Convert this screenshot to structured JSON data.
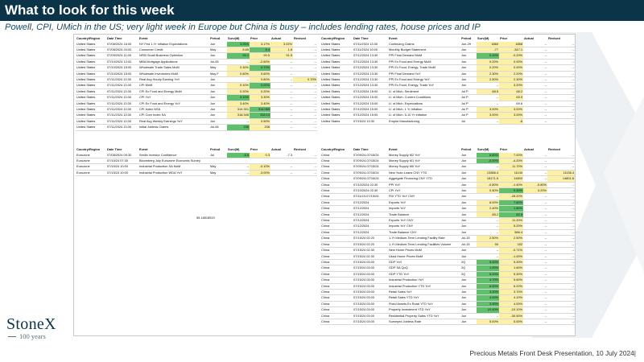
{
  "slide": {
    "title": "What to look for this week",
    "subtitle": "Powell, CPI, UMich in the US; very light week in Europe but China is busy – includes lending rates, house prices and IP",
    "footer": "Precious Metals Front Desk Presentation, 10 July 2024|",
    "logo_name": "StoneX",
    "logo_sub": "100 years",
    "orphan_value": "55.18518519",
    "colors": {
      "title_band": "#0b3448",
      "highlight_green": "#5fbf6a",
      "highlight_yellow": "#fbf0a6",
      "highlight_light_green": "#c7e5b3"
    }
  },
  "headers": {
    "us_left": [
      "Country/Region",
      "Date Time",
      "Event",
      "Period",
      "Surv(M)",
      "Prior",
      "Actual",
      "Revised"
    ],
    "us_right": [
      "Country/Region",
      "Date Time",
      "Event",
      "Period",
      "Surv(M)",
      "Prior",
      "Actual",
      "Revised"
    ],
    "eu": [
      "Country/Region",
      "Date Time",
      "Event",
      "Period",
      "Surv(M)",
      "Prior",
      "Actual",
      "Revised"
    ],
    "cn": [
      "Country/Region",
      "Date Time",
      "Event",
      "Period",
      "Surv(M)",
      "Prior",
      "Actual",
      "Revised"
    ]
  },
  "us_left": [
    {
      "c": "United States",
      "d": "07/08/2024 16:00",
      "e": "NY Fed 1-Yr Inflation Expectations",
      "p": "Jun",
      "s": "3.05%",
      "pr": "3.17%",
      "a": "3.02%",
      "r": "--",
      "hs": "g",
      "hpr": "y",
      "ha": "y"
    },
    {
      "c": "United States",
      "d": "07/08/2024 20:00",
      "e": "Consumer Credit",
      "p": "May",
      "s": "8.65",
      "pr": "6.4",
      "a": "1.8",
      "r": "--",
      "hs": "y",
      "hpr": "g",
      "ha": "y"
    },
    {
      "c": "United States",
      "d": "07/09/2024 11:00",
      "e": "NFIB Small Business Optimism",
      "p": "Jun",
      "s": "90.1",
      "pr": "90.5",
      "a": "91.5",
      "r": "--",
      "hs": "g",
      "hpr": "y",
      "ha": "y"
    },
    {
      "c": "United States",
      "d": "07/10/2024 12:00",
      "e": "MBA Mortgage Applications",
      "p": "Jul-05",
      "s": "--",
      "pr": "-2.60%",
      "a": "--",
      "r": "--",
      "hs": "",
      "hpr": "y",
      "ha": ""
    },
    {
      "c": "United States",
      "d": "07/10/2024 15:00",
      "e": "Wholesale Trade Sales MoM",
      "p": "May",
      "s": "0.30%",
      "pr": "0.70%",
      "a": "--",
      "r": "--",
      "hs": "y",
      "hpr": "g",
      "ha": ""
    },
    {
      "c": "United States",
      "d": "07/10/2024 15:00",
      "e": "Wholesale Inventories MoM",
      "p": "May F",
      "s": "0.60%",
      "pr": "0.60%",
      "a": "--",
      "r": "--",
      "hs": "y",
      "hpr": "y",
      "ha": ""
    },
    {
      "c": "United States",
      "d": "07/11/2024 13:30",
      "e": "Real Avg Hourly Earning YoY",
      "p": "Jun",
      "s": "--",
      "pr": "0.80%",
      "a": "--",
      "r": "0.70%",
      "hs": "",
      "hpr": "y",
      "ha": "",
      "hr": "y"
    },
    {
      "c": "United States",
      "d": "07/11/2024 13:30",
      "e": "CPI MoM",
      "p": "Jun",
      "s": "0.10%",
      "pr": "0.00%",
      "a": "--",
      "r": "--",
      "hs": "y",
      "hpr": "g",
      "ha": ""
    },
    {
      "c": "United States",
      "d": "07/11/2024 13:30",
      "e": "CPI Ex Food and Energy MoM",
      "p": "Jun",
      "s": "0.20%",
      "pr": "0.20%",
      "a": "--",
      "r": "--",
      "hs": "y",
      "hpr": "y",
      "ha": ""
    },
    {
      "c": "United States",
      "d": "07/11/2024 13:30",
      "e": "CPI YoY",
      "p": "Jun",
      "s": "3.10%",
      "pr": "3.30%",
      "a": "--",
      "r": "--",
      "hs": "g",
      "hpr": "y",
      "ha": ""
    },
    {
      "c": "United States",
      "d": "07/11/2024 13:30",
      "e": "CPI Ex Food and Energy YoY",
      "p": "Jun",
      "s": "3.40%",
      "pr": "3.40%",
      "a": "--",
      "r": "--",
      "hs": "y",
      "hpr": "y",
      "ha": ""
    },
    {
      "c": "United States",
      "d": "07/11/2024 13:30",
      "e": "CPI Index NSA",
      "p": "Jun",
      "s": "314.301",
      "pr": "314.069",
      "a": "--",
      "r": "--",
      "hs": "y",
      "hpr": "g",
      "ha": ""
    },
    {
      "c": "United States",
      "d": "07/11/2024 13:30",
      "e": "CPI Core Index SA",
      "p": "Jun",
      "s": "318.345",
      "pr": "318.14",
      "a": "--",
      "r": "--",
      "hs": "y",
      "hpr": "g",
      "ha": ""
    },
    {
      "c": "United States",
      "d": "07/11/2024 13:30",
      "e": "Real Avg Weekly Earnings YoY",
      "p": "Jun",
      "s": "--",
      "pr": "0.50%",
      "a": "--",
      "r": "--",
      "hs": "",
      "hpr": "y",
      "ha": ""
    },
    {
      "c": "United States",
      "d": "07/11/2024 13:30",
      "e": "Initial Jobless Claims",
      "p": "Jul-06",
      "s": "236",
      "pr": "238",
      "a": "--",
      "r": "--",
      "hs": "g",
      "hpr": "y",
      "ha": ""
    }
  ],
  "us_right": [
    {
      "c": "United States",
      "d": "07/11/2024 13:30",
      "e": "Continuing Claims",
      "p": "Jun-29",
      "s": "1860",
      "pr": "1858",
      "a": "--",
      "r": "--",
      "hs": "y",
      "hpr": "y",
      "ha": ""
    },
    {
      "c": "United States",
      "d": "07/11/2024 19:00",
      "e": "Monthly Budget Statement",
      "p": "Jun",
      "s": "-77",
      "pr": "-347.1",
      "a": "--",
      "r": "--",
      "hs": "y",
      "hpr": "y",
      "ha": ""
    },
    {
      "c": "United States",
      "d": "07/12/2024 13:30",
      "e": "PPI Final Demand MoM",
      "p": "Jun",
      "s": "0.10%",
      "pr": "-0.20%",
      "a": "--",
      "r": "--",
      "hs": "g",
      "hpr": "y",
      "ha": ""
    },
    {
      "c": "United States",
      "d": "07/12/2024 13:30",
      "e": "PPI Ex Food and Energy MoM",
      "p": "Jun",
      "s": "0.20%",
      "pr": "0.00%",
      "a": "--",
      "r": "--",
      "hs": "y",
      "hpr": "y",
      "ha": ""
    },
    {
      "c": "United States",
      "d": "07/12/2024 13:30",
      "e": "PPI Ex Food, Energy, Trade MoM",
      "p": "Jun",
      "s": "0.20%",
      "pr": "0.00%",
      "a": "--",
      "r": "--",
      "hs": "y",
      "hpr": "y",
      "ha": ""
    },
    {
      "c": "United States",
      "d": "07/12/2024 13:30",
      "e": "PPI Final Demand YoY",
      "p": "Jun",
      "s": "2.30%",
      "pr": "2.20%",
      "a": "--",
      "r": "--",
      "hs": "y",
      "hpr": "y",
      "ha": ""
    },
    {
      "c": "United States",
      "d": "07/12/2024 13:30",
      "e": "PPI Ex Food and Energy YoY",
      "p": "Jun",
      "s": "2.50%",
      "pr": "2.30%",
      "a": "--",
      "r": "--",
      "hs": "y",
      "hpr": "y",
      "ha": ""
    },
    {
      "c": "United States",
      "d": "07/12/2024 13:30",
      "e": "PPI Ex Food, Energy, Trade YoY",
      "p": "Jun",
      "s": "--",
      "pr": "3.20%",
      "a": "--",
      "r": "--",
      "hs": "",
      "hpr": "y",
      "ha": ""
    },
    {
      "c": "United States",
      "d": "07/12/2024 15:00",
      "e": "U. of Mich. Sentiment",
      "p": "Jul P",
      "s": "68.5",
      "pr": "68.2",
      "a": "--",
      "r": "--",
      "hs": "y",
      "hpr": "y",
      "ha": ""
    },
    {
      "c": "United States",
      "d": "07/12/2024 15:00",
      "e": "U. of Mich. Current Conditions",
      "p": "Jul P",
      "s": "--",
      "pr": "65.9",
      "a": "--",
      "r": "--",
      "hs": "",
      "hpr": "y",
      "ha": ""
    },
    {
      "c": "United States",
      "d": "07/12/2024 15:00",
      "e": "U. of Mich. Expectations",
      "p": "Jul P",
      "s": "--",
      "pr": "69.6",
      "a": "--",
      "r": "--",
      "hs": "",
      "hpr": "",
      "ha": ""
    },
    {
      "c": "United States",
      "d": "07/12/2024 15:00",
      "e": "U. of Mich. 1 Yr Inflation",
      "p": "Jul P",
      "s": "3.00%",
      "pr": "3.00%",
      "a": "--",
      "r": "--",
      "hs": "y",
      "hpr": "y",
      "ha": ""
    },
    {
      "c": "United States",
      "d": "07/12/2024 15:00",
      "e": "U. of Mich. 5-10 Yr Inflation",
      "p": "Jul P",
      "s": "3.00%",
      "pr": "3.00%",
      "a": "--",
      "r": "--",
      "hs": "y",
      "hpr": "y",
      "ha": ""
    },
    {
      "c": "United States",
      "d": "07/15/24 13:30",
      "e": "Empire Manufacturing",
      "p": "Jul",
      "s": "--",
      "pr": "-6",
      "a": "--",
      "r": "--",
      "hs": "",
      "hpr": "y",
      "ha": ""
    }
  ],
  "eu": [
    {
      "c": "Eurozone",
      "d": "07/08/2024 09:30",
      "e": "Sentix Investor Confidence",
      "p": "Jul",
      "s": "-6.5",
      "pr": "0.3",
      "a": "-7.3",
      "r": "--",
      "hs": "g",
      "hpr": "y",
      "ha": ""
    },
    {
      "c": "Eurozone",
      "d": "07/15/24 07:30",
      "e": "Bloomberg July Eurozone Economic Survey",
      "p": "",
      "s": "",
      "pr": "",
      "a": "",
      "r": "",
      "hs": "",
      "hpr": "",
      "ha": ""
    },
    {
      "c": "Eurozone",
      "d": "07/15/24 10:00",
      "e": "Industrial Production SA MoM",
      "p": "May",
      "s": "--",
      "pr": "-0.10%",
      "a": "--",
      "r": "--",
      "hs": "",
      "hpr": "y",
      "ha": ""
    },
    {
      "c": "Eurozone",
      "d": "07/15/24 10:00",
      "e": "Industrial Production WDA YoY",
      "p": "May",
      "s": "--",
      "pr": "-3.00%",
      "a": "--",
      "r": "--",
      "hs": "",
      "hpr": "y",
      "ha": ""
    }
  ],
  "cn": [
    {
      "c": "China",
      "d": "07/09/24-07/15/24",
      "e": "Money Supply M2 YoY",
      "p": "Jun",
      "s": "6.80%",
      "pr": "7.00%",
      "a": "--",
      "r": "--",
      "hs": "g",
      "hpr": "y",
      "ha": ""
    },
    {
      "c": "China",
      "d": "07/09/24-07/15/24",
      "e": "Money Supply M1 YoY",
      "p": "Jun",
      "s": "-5.00%",
      "pr": "-4.20%",
      "a": "--",
      "r": "--",
      "hs": "g",
      "hpr": "y",
      "ha": ""
    },
    {
      "c": "China",
      "d": "07/09/24-07/15/24",
      "e": "Money Supply M0 YoY",
      "p": "Jun",
      "s": "--",
      "pr": "11.70%",
      "a": "--",
      "r": "--",
      "hs": "",
      "hpr": "y",
      "ha": ""
    },
    {
      "c": "China",
      "d": "07/09/24-07/15/24",
      "e": "New Yuan Loans CNY YTD",
      "p": "Jun",
      "s": "13386.4",
      "pr": "11140",
      "a": "--",
      "r": "11136.4",
      "hs": "y",
      "hpr": "y",
      "ha": "",
      "hr": "y"
    },
    {
      "c": "China",
      "d": "07/09/24-07/15/24",
      "e": "Aggregate Financing CNY YTD",
      "p": "Jun",
      "s": "18171.5",
      "pr": "14800",
      "a": "--",
      "r": "14801.6",
      "hs": "y",
      "hpr": "y",
      "ha": "",
      "hr": "y"
    },
    {
      "c": "China",
      "d": "07/10/2024 02:30",
      "e": "PPI YoY",
      "p": "Jun",
      "s": "-0.80%",
      "pr": "-1.40%",
      "a": "-0.80%",
      "r": "--",
      "hs": "y",
      "hpr": "y",
      "ha": "y"
    },
    {
      "c": "China",
      "d": "07/10/2024 02:30",
      "e": "CPI YoY",
      "p": "Jun",
      "s": "0.40%",
      "pr": "0.30%",
      "a": "0.20%",
      "r": "--",
      "hs": "y",
      "hpr": "g",
      "ha": "y"
    },
    {
      "c": "China",
      "d": "07/11/24-07/15/24",
      "e": "FDI YTD YoY CNY",
      "p": "Jun",
      "s": "--",
      "pr": "-28.20%",
      "a": "--",
      "r": "--",
      "hs": "",
      "hpr": "y",
      "ha": ""
    },
    {
      "c": "China",
      "d": "07/12/2024",
      "e": "Exports YoY",
      "p": "Jun",
      "s": "8.00%",
      "pr": "7.60%",
      "a": "--",
      "r": "--",
      "hs": "y",
      "hpr": "g",
      "ha": ""
    },
    {
      "c": "China",
      "d": "07/12/2024",
      "e": "Imports YoY",
      "p": "Jun",
      "s": "2.40%",
      "pr": "1.80%",
      "a": "--",
      "r": "--",
      "hs": "y",
      "hpr": "g",
      "ha": ""
    },
    {
      "c": "China",
      "d": "07/12/2024",
      "e": "Trade Balance",
      "p": "Jun",
      "s": "85.2",
      "pr": "82.6",
      "a": "--",
      "r": "--",
      "hs": "y",
      "hpr": "g",
      "ha": ""
    },
    {
      "c": "China",
      "d": "07/12/2024",
      "e": "Exports YoY CNY",
      "p": "Jun",
      "s": "--",
      "pr": "11.20%",
      "a": "--",
      "r": "--",
      "hs": "",
      "hpr": "y",
      "ha": ""
    },
    {
      "c": "China",
      "d": "07/12/2024",
      "e": "Imports YoY CNY",
      "p": "Jun",
      "s": "--",
      "pr": "5.20%",
      "a": "--",
      "r": "--",
      "hs": "",
      "hpr": "y",
      "ha": ""
    },
    {
      "c": "China",
      "d": "07/12/2024",
      "e": "Trade Balance CNY",
      "p": "Jun",
      "s": "--",
      "pr": "586.4",
      "a": "--",
      "r": "--",
      "hs": "",
      "hpr": "y",
      "ha": ""
    },
    {
      "c": "China",
      "d": "07/15/24 02:20",
      "e": "1-Yr Medium-Term Lending Facility Rate",
      "p": "Jul-15",
      "s": "2.50%",
      "pr": "2.50%",
      "a": "--",
      "r": "--",
      "hs": "y",
      "hpr": "y",
      "ha": ""
    },
    {
      "c": "China",
      "d": "07/15/24 02:20",
      "e": "1-Yr Medium-Term Lending Facilities Volume",
      "p": "Jul-15",
      "s": "90",
      "pr": "182",
      "a": "--",
      "r": "--",
      "hs": "y",
      "hpr": "y",
      "ha": ""
    },
    {
      "c": "China",
      "d": "07/15/24 02:30",
      "e": "New Home Prices MoM",
      "p": "Jun",
      "s": "--",
      "pr": "-0.71%",
      "a": "--",
      "r": "--",
      "hs": "",
      "hpr": "y",
      "ha": ""
    },
    {
      "c": "China",
      "d": "07/15/24 02:30",
      "e": "Used Home Prices MoM",
      "p": "Jun",
      "s": "--",
      "pr": "-1.00%",
      "a": "--",
      "r": "--",
      "hs": "",
      "hpr": "y",
      "ha": ""
    },
    {
      "c": "China",
      "d": "07/15/24 03:00",
      "e": "GDP YoY",
      "p": "2Q",
      "s": "5.00%",
      "pr": "5.30%",
      "a": "--",
      "r": "--",
      "hs": "g",
      "hpr": "y",
      "ha": ""
    },
    {
      "c": "China",
      "d": "07/15/24 03:00",
      "e": "GDP SA QoQ",
      "p": "2Q",
      "s": "1.00%",
      "pr": "1.60%",
      "a": "--",
      "r": "--",
      "hs": "g",
      "hpr": "y",
      "ha": ""
    },
    {
      "c": "China",
      "d": "07/15/24 03:00",
      "e": "GDP YTD YoY",
      "p": "2Q",
      "s": "5.20%",
      "pr": "5.30%",
      "a": "--",
      "r": "--",
      "hs": "g",
      "hpr": "y",
      "ha": ""
    },
    {
      "c": "China",
      "d": "07/15/24 03:00",
      "e": "Industrial Production YoY",
      "p": "Jun",
      "s": "4.70%",
      "pr": "5.60%",
      "a": "--",
      "r": "--",
      "hs": "g",
      "hpr": "y",
      "ha": ""
    },
    {
      "c": "China",
      "d": "07/15/24 03:00",
      "e": "Industrial Production YTD YoY",
      "p": "Jun",
      "s": "6.00%",
      "pr": "6.20%",
      "a": "--",
      "r": "--",
      "hs": "g",
      "hpr": "y",
      "ha": ""
    },
    {
      "c": "China",
      "d": "07/15/24 03:00",
      "e": "Retail Sales YoY",
      "p": "Jun",
      "s": "3.30%",
      "pr": "3.70%",
      "a": "--",
      "r": "--",
      "hs": "g",
      "hpr": "y",
      "ha": ""
    },
    {
      "c": "China",
      "d": "07/15/24 03:00",
      "e": "Retail Sales YTD YoY",
      "p": "Jun",
      "s": "4.00%",
      "pr": "4.10%",
      "a": "--",
      "r": "--",
      "hs": "g",
      "hpr": "y",
      "ha": ""
    },
    {
      "c": "China",
      "d": "07/15/24 03:00",
      "e": "Fixed Assets Ex Rural YTD YoY",
      "p": "Jun",
      "s": "3.90%",
      "pr": "4.00%",
      "a": "--",
      "r": "--",
      "hs": "g",
      "hpr": "y",
      "ha": ""
    },
    {
      "c": "China",
      "d": "07/15/24 03:00",
      "e": "Property Investment YTD YoY",
      "p": "Jun",
      "s": "-10.40%",
      "pr": "-10.10%",
      "a": "--",
      "r": "--",
      "hs": "g",
      "hpr": "y",
      "ha": ""
    },
    {
      "c": "China",
      "d": "07/15/24 03:00",
      "e": "Residential Property Sales YTD YoY",
      "p": "Jun",
      "s": "--",
      "pr": "-30.50%",
      "a": "--",
      "r": "--",
      "hs": "",
      "hpr": "y",
      "ha": ""
    },
    {
      "c": "China",
      "d": "07/15/24 03:00",
      "e": "Surveyed Jobless Rate",
      "p": "Jun",
      "s": "5.00%",
      "pr": "5.00%",
      "a": "--",
      "r": "--",
      "hs": "y",
      "hpr": "y",
      "ha": ""
    }
  ]
}
